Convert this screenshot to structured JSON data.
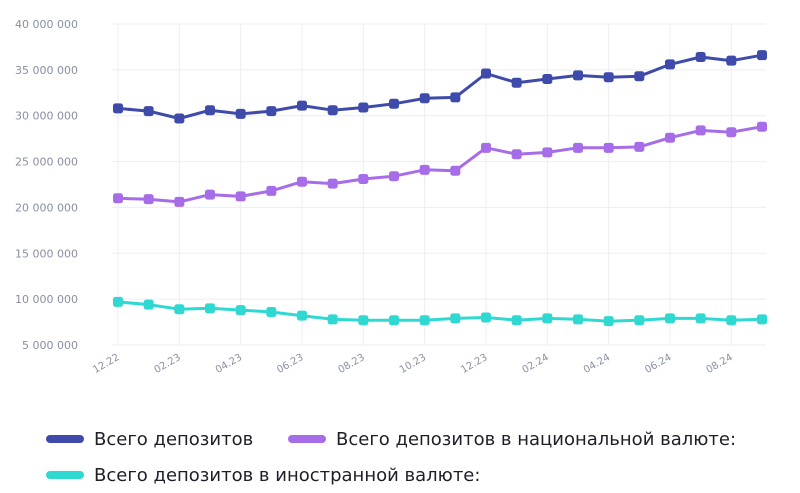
{
  "chart_data": {
    "type": "line",
    "x_labels": [
      "12.22",
      "",
      "02.23",
      "",
      "04.23",
      "",
      "06.23",
      "",
      "08.23",
      "",
      "10.23",
      "",
      "12.23",
      "",
      "02.24",
      "",
      "04.24",
      "",
      "06.24",
      "",
      "08.24",
      ""
    ],
    "ylim": [
      5000000,
      40000000
    ],
    "yticks": [
      5000000,
      10000000,
      15000000,
      20000000,
      25000000,
      30000000,
      35000000,
      40000000
    ],
    "ytick_labels": [
      "5 000 000",
      "10 000 000",
      "15 000 000",
      "20 000 000",
      "25 000 000",
      "30 000 000",
      "35 000 000",
      "40 000 000"
    ],
    "grid": "vertical and horizontal",
    "legend_position": "bottom",
    "series": [
      {
        "name": "Всего депозитов",
        "color": "#3f4bab",
        "values": [
          30800000,
          30500000,
          29700000,
          30600000,
          30200000,
          30500000,
          31100000,
          30600000,
          30900000,
          31300000,
          31900000,
          32000000,
          34600000,
          33600000,
          34000000,
          34400000,
          34200000,
          34300000,
          35600000,
          36400000,
          36000000,
          36600000
        ]
      },
      {
        "name": "Всего депозитов в национальной валюте:",
        "color": "#a76de8",
        "values": [
          21000000,
          20900000,
          20600000,
          21400000,
          21200000,
          21800000,
          22800000,
          22600000,
          23100000,
          23400000,
          24100000,
          24000000,
          26500000,
          25800000,
          26000000,
          26500000,
          26500000,
          26600000,
          27600000,
          28400000,
          28200000,
          28800000
        ]
      },
      {
        "name": "Всего депозитов в иностранной валюте:",
        "color": "#30d8d2",
        "values": [
          9700000,
          9400000,
          8900000,
          9000000,
          8800000,
          8600000,
          8200000,
          7800000,
          7700000,
          7700000,
          7700000,
          7900000,
          8000000,
          7700000,
          7900000,
          7800000,
          7600000,
          7700000,
          7900000,
          7900000,
          7700000,
          7800000
        ]
      }
    ]
  }
}
